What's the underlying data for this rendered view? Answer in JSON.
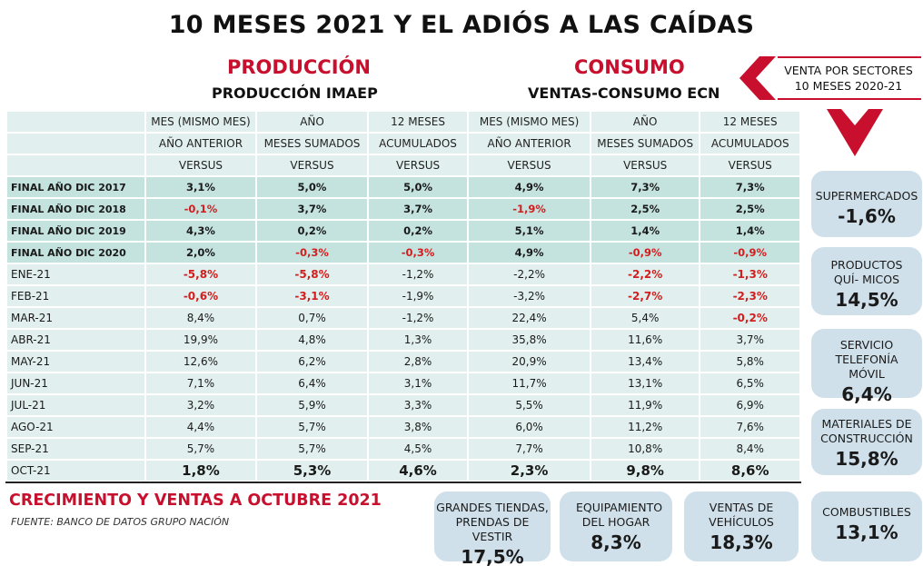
{
  "title": "10 MESES 2021 Y EL ADIÓS A LAS CAÍDAS",
  "production": {
    "section": "PRODUCCIÓN",
    "subtitle": "PRODUCCIÓN IMAEP"
  },
  "consumption": {
    "section": "CONSUMO",
    "subtitle": "VENTAS-CONSUMO ECN"
  },
  "sector_callout": {
    "line1": "VENTA POR SECTORES",
    "line2": "10 MESES 2020-21"
  },
  "colors": {
    "accent_red": "#c8102e",
    "negative": "#d21e1e",
    "table_light": "#e1f0ee",
    "table_dark": "#c4e3df",
    "card": "#cfe0ea"
  },
  "table": {
    "header_rows": [
      [
        "",
        "MES (MISMO MES)",
        "AÑO",
        "12 MESES",
        "MES (MISMO MES)",
        "AÑO",
        "12 MESES"
      ],
      [
        "",
        "AÑO ANTERIOR",
        "MESES SUMADOS",
        "ACUMULADOS",
        "AÑO ANTERIOR",
        "MESES SUMADOS",
        "ACUMULADOS"
      ],
      [
        "",
        "VERSUS",
        "VERSUS",
        "VERSUS",
        "VERSUS",
        "VERSUS",
        "VERSUS"
      ]
    ],
    "year_rows": [
      {
        "label": "FINAL AÑO DIC 2017",
        "values": [
          "3,1%",
          "5,0%",
          "5,0%",
          "4,9%",
          "7,3%",
          "7,3%"
        ]
      },
      {
        "label": "FINAL AÑO DIC 2018",
        "values": [
          "-0,1%",
          "3,7%",
          "3,7%",
          "-1,9%",
          "2,5%",
          "2,5%"
        ]
      },
      {
        "label": "FINAL AÑO DIC 2019",
        "values": [
          "4,3%",
          "0,2%",
          "0,2%",
          "5,1%",
          "1,4%",
          "1,4%"
        ]
      },
      {
        "label": "FINAL AÑO DIC 2020",
        "values": [
          "2,0%",
          "-0,3%",
          "-0,3%",
          "4,9%",
          "-0,9%",
          "-0,9%"
        ]
      }
    ],
    "month_rows": [
      {
        "label": "ENE-21",
        "values": [
          "-5,8%",
          "-5,8%",
          "-1,2%",
          "-2,2%",
          "-2,2%",
          "-1,3%"
        ],
        "red": [
          true,
          true,
          false,
          false,
          true,
          true
        ]
      },
      {
        "label": "FEB-21",
        "values": [
          "-0,6%",
          "-3,1%",
          "-1,9%",
          "-3,2%",
          "-2,7%",
          "-2,3%"
        ],
        "red": [
          true,
          true,
          false,
          false,
          true,
          true
        ]
      },
      {
        "label": "MAR-21",
        "values": [
          "8,4%",
          "0,7%",
          "-1,2%",
          "22,4%",
          "5,4%",
          "-0,2%"
        ],
        "red": [
          false,
          false,
          false,
          false,
          false,
          true
        ]
      },
      {
        "label": "ABR-21",
        "values": [
          "19,9%",
          "4,8%",
          "1,3%",
          "35,8%",
          "11,6%",
          "3,7%"
        ],
        "red": [
          false,
          false,
          false,
          false,
          false,
          false
        ]
      },
      {
        "label": "MAY-21",
        "values": [
          "12,6%",
          "6,2%",
          "2,8%",
          "20,9%",
          "13,4%",
          "5,8%"
        ],
        "red": [
          false,
          false,
          false,
          false,
          false,
          false
        ]
      },
      {
        "label": "JUN-21",
        "values": [
          "7,1%",
          "6,4%",
          "3,1%",
          "11,7%",
          "13,1%",
          "6,5%"
        ],
        "red": [
          false,
          false,
          false,
          false,
          false,
          false
        ]
      },
      {
        "label": "JUL-21",
        "values": [
          "3,2%",
          "5,9%",
          "3,3%",
          "5,5%",
          "11,9%",
          "6,9%"
        ],
        "red": [
          false,
          false,
          false,
          false,
          false,
          false
        ]
      },
      {
        "label": "AGO-21",
        "values": [
          "4,4%",
          "5,7%",
          "3,8%",
          "6,0%",
          "11,2%",
          "7,6%"
        ],
        "red": [
          false,
          false,
          false,
          false,
          false,
          false
        ]
      },
      {
        "label": "SEP-21",
        "values": [
          "5,7%",
          "5,7%",
          "4,5%",
          "7,7%",
          "10,8%",
          "8,4%"
        ],
        "red": [
          false,
          false,
          false,
          false,
          false,
          false
        ]
      }
    ],
    "last_row": {
      "label": "OCT-21",
      "values": [
        "1,8%",
        "5,3%",
        "4,6%",
        "2,3%",
        "9,8%",
        "8,6%"
      ]
    }
  },
  "footer": {
    "title": "CRECIMIENTO Y VENTAS A OCTUBRE 2021",
    "source": "FUENTE: BANCO DE DATOS GRUPO NACIÓN"
  },
  "side_cards": [
    {
      "label": "SUPERMERCADOS",
      "value": "-1,6%"
    },
    {
      "label": "PRODUCTOS QUÍ- MICOS",
      "value": "14,5%"
    },
    {
      "label": "SERVICIO TELEFONÍA MÓVIL",
      "value": "6,4%"
    },
    {
      "label": "MATERIALES DE CONSTRUCCIÓN",
      "value": "15,8%"
    },
    {
      "label": "COMBUSTIBLES",
      "value": "13,1%"
    }
  ],
  "bottom_cards": [
    {
      "label": "GRANDES TIENDAS, PRENDAS DE VESTIR",
      "value": "17,5%"
    },
    {
      "label": "EQUIPAMIENTO DEL HOGAR",
      "value": "8,3%"
    },
    {
      "label": "VENTAS DE VEHÍCULOS",
      "value": "18,3%"
    }
  ]
}
